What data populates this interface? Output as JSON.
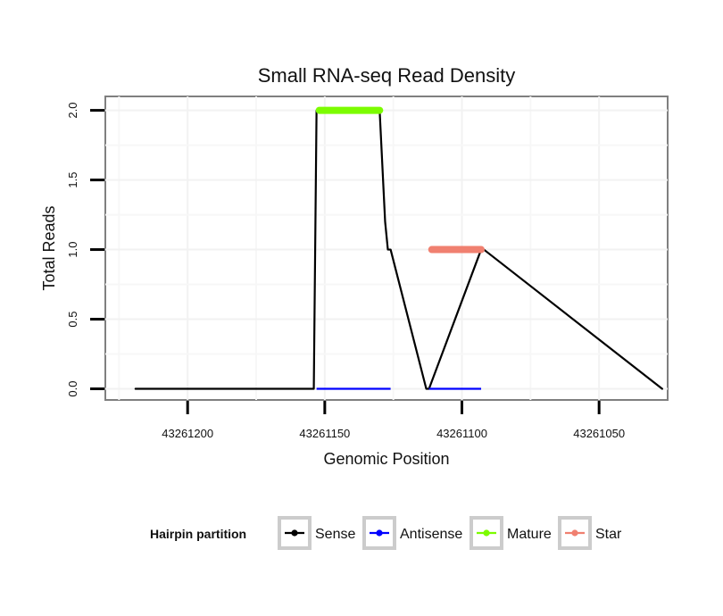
{
  "chart_data": {
    "type": "line",
    "title": "Small RNA-seq Read Density",
    "xlabel": "Genomic Position",
    "ylabel": "Total Reads",
    "x_reversed": true,
    "xlim": [
      43261230,
      43261025
    ],
    "ylim": [
      -0.08,
      2.1
    ],
    "x_ticks": [
      43261200,
      43261150,
      43261100,
      43261050
    ],
    "x_tick_labels": [
      "43261200",
      "43261150",
      "43261100",
      "43261050"
    ],
    "y_ticks": [
      0,
      0.5,
      1,
      1.5,
      2
    ],
    "y_tick_labels": [
      "0.0",
      "0.5",
      "1.0",
      "1.5",
      "2.0"
    ],
    "grid": true,
    "legend_title": "Hairpin partition",
    "legend_position": "bottom",
    "series": [
      {
        "name": "Sense",
        "color": "#000000",
        "x": [
          43261219,
          43261154,
          43261153,
          43261130,
          43261129,
          43261128,
          43261127,
          43261126,
          43261113,
          43261112,
          43261093,
          43261092,
          43261027
        ],
        "y": [
          0,
          0,
          2,
          2,
          1.6,
          1.2,
          1.0,
          1.0,
          0,
          0,
          1,
          1,
          0
        ]
      },
      {
        "name": "Antisense",
        "color": "#0000ff",
        "x": [
          43261153,
          43261126,
          43261112,
          43261093
        ],
        "y": [
          0,
          0,
          0,
          0
        ]
      },
      {
        "name": "Mature",
        "color": "#7cfc00",
        "x": [
          43261152,
          43261130
        ],
        "y": [
          2,
          2
        ]
      },
      {
        "name": "Star",
        "color": "#f08070",
        "x": [
          43261111,
          43261093
        ],
        "y": [
          1,
          1
        ]
      }
    ]
  }
}
